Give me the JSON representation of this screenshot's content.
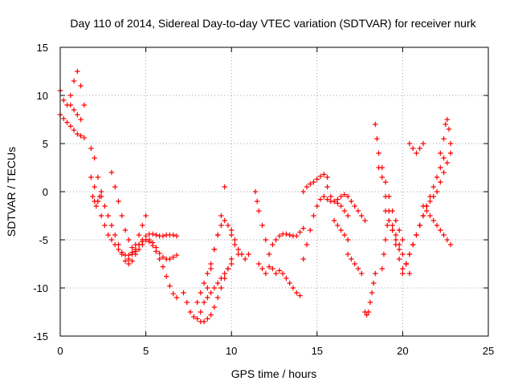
{
  "chart_data": {
    "type": "scatter",
    "title": "Day 110 of 2014, Sidereal Day-to-day VTEC variation (SDTVAR) for receiver nurk",
    "xlabel": "GPS time / hours",
    "ylabel": "SDTVAR / TECUs",
    "xlim": [
      0,
      25
    ],
    "ylim": [
      -15,
      15
    ],
    "xticks": [
      0,
      5,
      10,
      15,
      20,
      25
    ],
    "yticks": [
      -15,
      -10,
      -5,
      0,
      5,
      10,
      15
    ],
    "xtick_labels": [
      "0",
      "5",
      "10",
      "15",
      "20",
      "25"
    ],
    "ytick_labels": [
      "-15",
      "-10",
      "-5",
      "0",
      "5",
      "10",
      "15"
    ],
    "grid": true,
    "marker": "+",
    "color": "#ff0000",
    "series": [
      {
        "name": "s1",
        "x": [
          0.0,
          0.2,
          0.4,
          0.6,
          0.8,
          1.0,
          1.2,
          1.4,
          1.8,
          2.0,
          2.2,
          2.4,
          2.6,
          2.8,
          3.0,
          3.2,
          3.4,
          3.6,
          3.8,
          4.0,
          4.2,
          4.4,
          4.6,
          4.8,
          5.0,
          5.2,
          5.4,
          5.6,
          5.8,
          6.0,
          6.2,
          6.4,
          6.6,
          6.8
        ],
        "y": [
          8.0,
          7.6,
          7.2,
          6.8,
          6.4,
          6.0,
          5.8,
          5.6,
          4.5,
          3.5,
          1.5,
          -0.5,
          -1.5,
          -2.5,
          -3.5,
          -4.5,
          -5.5,
          -6.5,
          -7.2,
          -7.5,
          -7.2,
          -6.5,
          -5.5,
          -5.0,
          -4.6,
          -4.4,
          -4.4,
          -4.5,
          -4.6,
          -4.6,
          -4.5,
          -4.5,
          -4.5,
          -4.6
        ]
      },
      {
        "name": "s2",
        "x": [
          0.0,
          0.2,
          0.4,
          0.6,
          0.8,
          1.0,
          1.2,
          1.4
        ],
        "y": [
          10.5,
          9.5,
          9.0,
          10.0,
          11.5,
          12.5,
          11.0,
          9.0
        ]
      },
      {
        "name": "s3",
        "x": [
          0.6,
          0.8,
          1.0,
          1.2
        ],
        "y": [
          9.0,
          8.5,
          8.0,
          7.5
        ]
      },
      {
        "name": "s4",
        "x": [
          1.8,
          2.0,
          2.2,
          2.4,
          2.6,
          2.8,
          3.0,
          3.2,
          3.4,
          3.6,
          3.8,
          4.0,
          4.2,
          4.4,
          4.6,
          4.8,
          5.0,
          5.2,
          5.4,
          5.6,
          5.8,
          6.0,
          6.2,
          6.4,
          6.6,
          6.8
        ],
        "y": [
          1.5,
          0.5,
          -1.0,
          -2.5,
          -3.5,
          -4.5,
          -5.0,
          -5.5,
          -6.0,
          -6.3,
          -6.6,
          -6.6,
          -6.3,
          -6.0,
          -5.5,
          -5.2,
          -5.0,
          -5.2,
          -5.6,
          -6.2,
          -7.0,
          -7.8,
          -8.8,
          -9.8,
          -10.6,
          -11.0
        ]
      },
      {
        "name": "s5",
        "x": [
          1.9,
          2.0,
          2.1,
          2.2,
          2.3,
          2.4
        ],
        "y": [
          -0.5,
          -1.0,
          -1.5,
          -1.0,
          -0.5,
          0.0
        ]
      },
      {
        "name": "s6",
        "x": [
          3.0,
          3.2,
          3.4,
          3.6,
          3.8,
          4.0,
          4.2,
          4.4,
          4.6,
          4.8,
          5.0,
          5.2,
          5.4,
          5.6,
          5.8,
          6.0,
          6.2,
          6.4,
          6.6,
          6.8
        ],
        "y": [
          2.0,
          0.5,
          -1.0,
          -2.5,
          -4.0,
          -5.0,
          -5.8,
          -6.2,
          -6.0,
          -5.5,
          -5.0,
          -5.0,
          -5.3,
          -5.8,
          -6.4,
          -6.8,
          -7.0,
          -7.0,
          -6.8,
          -6.6
        ]
      },
      {
        "name": "s7",
        "x": [
          4.0,
          4.2,
          4.4,
          4.6,
          4.8,
          5.0
        ],
        "y": [
          -7.0,
          -6.5,
          -5.5,
          -4.5,
          -3.5,
          -2.5
        ]
      },
      {
        "name": "s8",
        "x": [
          7.2,
          7.4,
          7.6,
          7.8,
          8.0,
          8.2,
          8.4,
          8.6,
          8.8,
          9.0,
          9.2,
          9.4,
          9.6,
          9.8,
          10.0
        ],
        "y": [
          -10.5,
          -11.5,
          -12.5,
          -13.0,
          -13.2,
          -13.5,
          -13.5,
          -13.2,
          -12.8,
          -12.0,
          -11.0,
          -10.0,
          -9.0,
          -8.0,
          -7.0
        ]
      },
      {
        "name": "s9",
        "x": [
          8.0,
          8.2,
          8.4,
          8.6,
          8.8,
          9.0,
          9.2,
          9.4,
          9.6,
          9.8,
          10.0,
          10.2,
          10.4
        ],
        "y": [
          -11.5,
          -10.5,
          -9.5,
          -8.5,
          -7.5,
          -6.0,
          -4.5,
          -3.5,
          -3.0,
          -3.5,
          -4.5,
          -5.5,
          -6.5
        ]
      },
      {
        "name": "s10",
        "x": [
          8.2,
          8.4,
          8.6,
          8.8,
          9.0,
          9.2,
          9.4,
          9.6
        ],
        "y": [
          -12.5,
          -11.5,
          -10.0,
          -8.0,
          -6.0,
          -4.5,
          -2.5,
          0.5
        ]
      },
      {
        "name": "s11",
        "x": [
          8.6,
          8.8,
          9.0,
          9.2,
          9.4,
          9.6,
          9.8,
          10.0
        ],
        "y": [
          -11.0,
          -10.5,
          -10.0,
          -9.5,
          -9.0,
          -8.5,
          -8.0,
          -7.5
        ]
      },
      {
        "name": "s12",
        "x": [
          10.0,
          10.2,
          10.4,
          10.6,
          10.8,
          11.0
        ],
        "y": [
          -4.0,
          -5.0,
          -6.0,
          -6.5,
          -7.0,
          -6.5
        ]
      },
      {
        "name": "s13",
        "x": [
          11.4,
          11.5,
          11.6,
          11.8,
          12.0,
          12.2
        ],
        "y": [
          0.0,
          -1.0,
          -2.0,
          -3.5,
          -5.0,
          -6.5
        ]
      },
      {
        "name": "s14",
        "x": [
          11.6,
          11.8,
          12.0,
          12.2,
          12.4,
          12.6,
          12.8,
          13.0,
          13.2,
          13.4,
          13.6,
          13.8,
          14.0
        ],
        "y": [
          -7.5,
          -8.0,
          -8.5,
          -7.8,
          -8.0,
          -8.5,
          -8.2,
          -8.5,
          -9.0,
          -9.5,
          -10.0,
          -10.5,
          -10.8
        ]
      },
      {
        "name": "s15",
        "x": [
          12.4,
          12.6,
          12.8,
          13.0,
          13.2,
          13.4,
          13.6,
          13.8,
          14.0,
          14.2
        ],
        "y": [
          -5.5,
          -5.0,
          -4.6,
          -4.4,
          -4.4,
          -4.5,
          -4.6,
          -4.6,
          -4.2,
          -3.8
        ]
      },
      {
        "name": "s16",
        "x": [
          14.2,
          14.4,
          14.6,
          14.8,
          15.0,
          15.2,
          15.4,
          15.6,
          15.8,
          16.0,
          16.2,
          16.4,
          16.6,
          16.8
        ],
        "y": [
          -7.0,
          -5.5,
          -4.0,
          -2.5,
          -1.5,
          -0.8,
          -0.5,
          -0.8,
          -1.0,
          -1.0,
          -1.2,
          -1.5,
          -2.0,
          -2.5
        ]
      },
      {
        "name": "s17",
        "x": [
          14.2,
          14.4,
          14.6,
          14.8,
          15.0,
          15.2,
          15.4,
          15.6
        ],
        "y": [
          0.0,
          0.5,
          0.8,
          1.0,
          1.3,
          1.6,
          1.8,
          1.5
        ]
      },
      {
        "name": "s18",
        "x": [
          15.6,
          15.8,
          16.0,
          16.2,
          16.4,
          16.6,
          16.8,
          17.0,
          17.2,
          17.4,
          17.6,
          17.8
        ],
        "y": [
          0.5,
          -0.5,
          -1.0,
          -0.8,
          -0.5,
          -0.3,
          -0.5,
          -1.0,
          -1.5,
          -2.0,
          -2.5,
          -3.0
        ]
      },
      {
        "name": "s19",
        "x": [
          16.0,
          16.2,
          16.4,
          16.6,
          16.8
        ],
        "y": [
          -3.0,
          -3.5,
          -4.0,
          -4.5,
          -5.0
        ]
      },
      {
        "name": "s20",
        "x": [
          16.8,
          17.0,
          17.2,
          17.4,
          17.6
        ],
        "y": [
          -6.5,
          -7.0,
          -7.5,
          -8.0,
          -8.5
        ]
      },
      {
        "name": "s21",
        "x": [
          17.8,
          17.9,
          18.0,
          18.1,
          18.2,
          18.3,
          18.4
        ],
        "y": [
          -12.5,
          -12.8,
          -12.5,
          -11.5,
          -10.5,
          -9.5,
          -8.5
        ]
      },
      {
        "name": "s22",
        "x": [
          18.4,
          18.5,
          18.6,
          18.8,
          19.0,
          19.2,
          19.4,
          19.6,
          19.8,
          20.0
        ],
        "y": [
          7.0,
          5.5,
          4.0,
          2.5,
          1.0,
          -0.5,
          -2.0,
          -3.0,
          -4.0,
          -5.0
        ]
      },
      {
        "name": "s23",
        "x": [
          18.6,
          18.8,
          19.0,
          19.2,
          19.4,
          19.6,
          19.8,
          20.0,
          20.2,
          20.4
        ],
        "y": [
          2.5,
          1.5,
          -0.5,
          -2.0,
          -3.5,
          -4.5,
          -5.5,
          -6.5,
          -7.5,
          -8.5
        ]
      },
      {
        "name": "s24",
        "x": [
          19.4,
          19.6,
          19.8,
          20.0,
          20.2,
          20.4,
          20.6,
          20.8,
          21.0,
          21.2,
          21.4,
          21.6,
          21.8,
          22.0,
          22.2,
          22.4
        ],
        "y": [
          -4.0,
          -5.5,
          -7.0,
          -8.0,
          -7.5,
          -6.5,
          -5.5,
          -4.5,
          -3.5,
          -2.5,
          -1.5,
          -0.5,
          0.5,
          1.5,
          2.5,
          3.5
        ]
      },
      {
        "name": "s25",
        "x": [
          20.0,
          20.2,
          20.4,
          20.6,
          20.8,
          21.0,
          21.2,
          21.4,
          21.6,
          21.8,
          22.0,
          22.2,
          22.4,
          22.6,
          22.8
        ],
        "y": [
          -8.5,
          -7.5,
          -6.5,
          -5.5,
          -4.5,
          -3.5,
          -2.5,
          -1.5,
          -1.0,
          -0.5,
          0.0,
          1.0,
          2.0,
          3.0,
          4.0
        ]
      },
      {
        "name": "s26",
        "x": [
          20.4,
          20.6,
          20.8,
          21.0,
          21.2
        ],
        "y": [
          5.0,
          4.5,
          4.0,
          4.5,
          5.0
        ]
      },
      {
        "name": "s27",
        "x": [
          21.2,
          21.4,
          21.6,
          21.8,
          22.0,
          22.2,
          22.4,
          22.6,
          22.8
        ],
        "y": [
          -1.5,
          -2.0,
          -2.5,
          -3.0,
          -3.5,
          -4.0,
          -4.5,
          -5.0,
          -5.5
        ]
      },
      {
        "name": "s28",
        "x": [
          22.2,
          22.4,
          22.5,
          22.6,
          22.7,
          22.8
        ],
        "y": [
          4.0,
          5.5,
          7.0,
          7.5,
          6.5,
          5.0
        ]
      },
      {
        "name": "s29",
        "x": [
          18.8,
          18.9,
          19.0,
          19.1
        ],
        "y": [
          -8.0,
          -6.5,
          -5.0,
          -3.5
        ]
      },
      {
        "name": "s30",
        "x": [
          19.0,
          19.2,
          19.4,
          19.6,
          19.8
        ],
        "y": [
          -2.0,
          -3.0,
          -4.0,
          -5.0,
          -6.0
        ]
      }
    ]
  }
}
